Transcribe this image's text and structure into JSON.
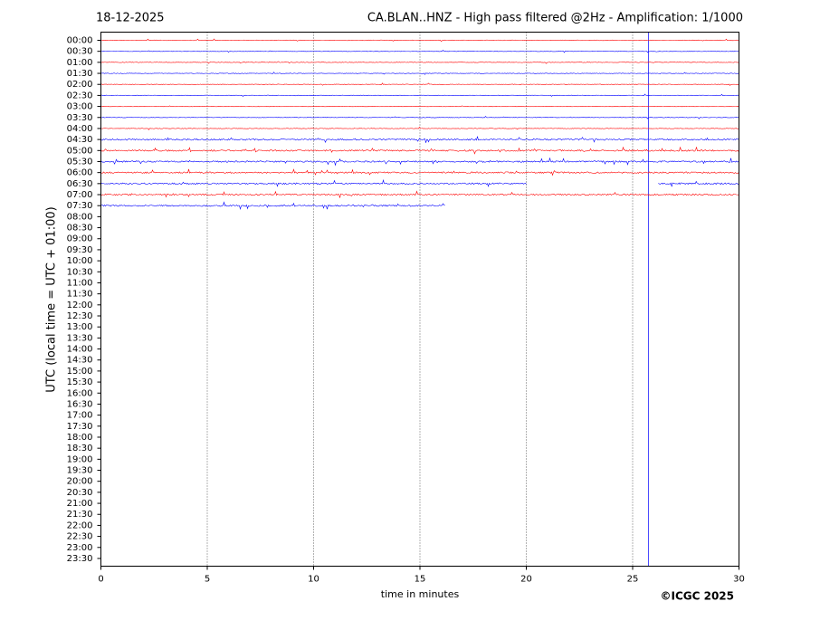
{
  "chart_data": {
    "type": "helicorder",
    "date": "18-12-2025",
    "title": "CA.BLAN..HNZ - High pass filtered @2Hz - Amplification: 1/1000",
    "ylabel": "UTC (local time = UTC + 01:00)",
    "xlabel": "time in minutes",
    "credit": "©ICGC 2025",
    "categories": [
      "00:00",
      "00:30",
      "01:00",
      "01:30",
      "02:00",
      "02:30",
      "03:00",
      "03:30",
      "04:00",
      "04:30",
      "05:00",
      "05:30",
      "06:00",
      "06:30",
      "07:00",
      "07:30",
      "08:00",
      "08:30",
      "09:00",
      "09:30",
      "10:00",
      "10:30",
      "11:00",
      "11:30",
      "12:00",
      "12:30",
      "13:00",
      "13:30",
      "14:00",
      "14:30",
      "15:00",
      "15:30",
      "16:00",
      "16:30",
      "17:00",
      "17:30",
      "18:00",
      "18:30",
      "19:00",
      "19:30",
      "20:00",
      "20:30",
      "21:00",
      "21:30",
      "22:00",
      "22:30",
      "23:00",
      "23:30"
    ],
    "segments": [
      [
        [
          0,
          30
        ]
      ],
      [
        [
          0,
          30
        ]
      ],
      [
        [
          0,
          30
        ]
      ],
      [
        [
          0,
          30
        ]
      ],
      [
        [
          0,
          30
        ]
      ],
      [
        [
          0,
          30
        ]
      ],
      [
        [
          0,
          30
        ]
      ],
      [
        [
          0,
          30
        ]
      ],
      [
        [
          0,
          30
        ]
      ],
      [
        [
          0,
          30
        ]
      ],
      [
        [
          0,
          30
        ]
      ],
      [
        [
          0,
          30
        ]
      ],
      [
        [
          0,
          30
        ]
      ],
      [
        [
          0,
          20
        ],
        [
          26.2,
          30
        ]
      ],
      [
        [
          0,
          30
        ]
      ],
      [
        [
          0,
          16.2
        ]
      ],
      [],
      [],
      [],
      [],
      [],
      [],
      [],
      [],
      [],
      [],
      [],
      [],
      [],
      [],
      [],
      [],
      [],
      [],
      [],
      [],
      [],
      [],
      [],
      [],
      [],
      [],
      [],
      [],
      [],
      [],
      [],
      []
    ],
    "colors": [
      "#ff0000",
      "#0000ff"
    ],
    "xlim": [
      0,
      30
    ],
    "xticks": [
      0,
      5,
      10,
      15,
      20,
      25,
      30
    ],
    "grid": true,
    "marker_x": 25.75,
    "marker_color": "#0000ff"
  }
}
